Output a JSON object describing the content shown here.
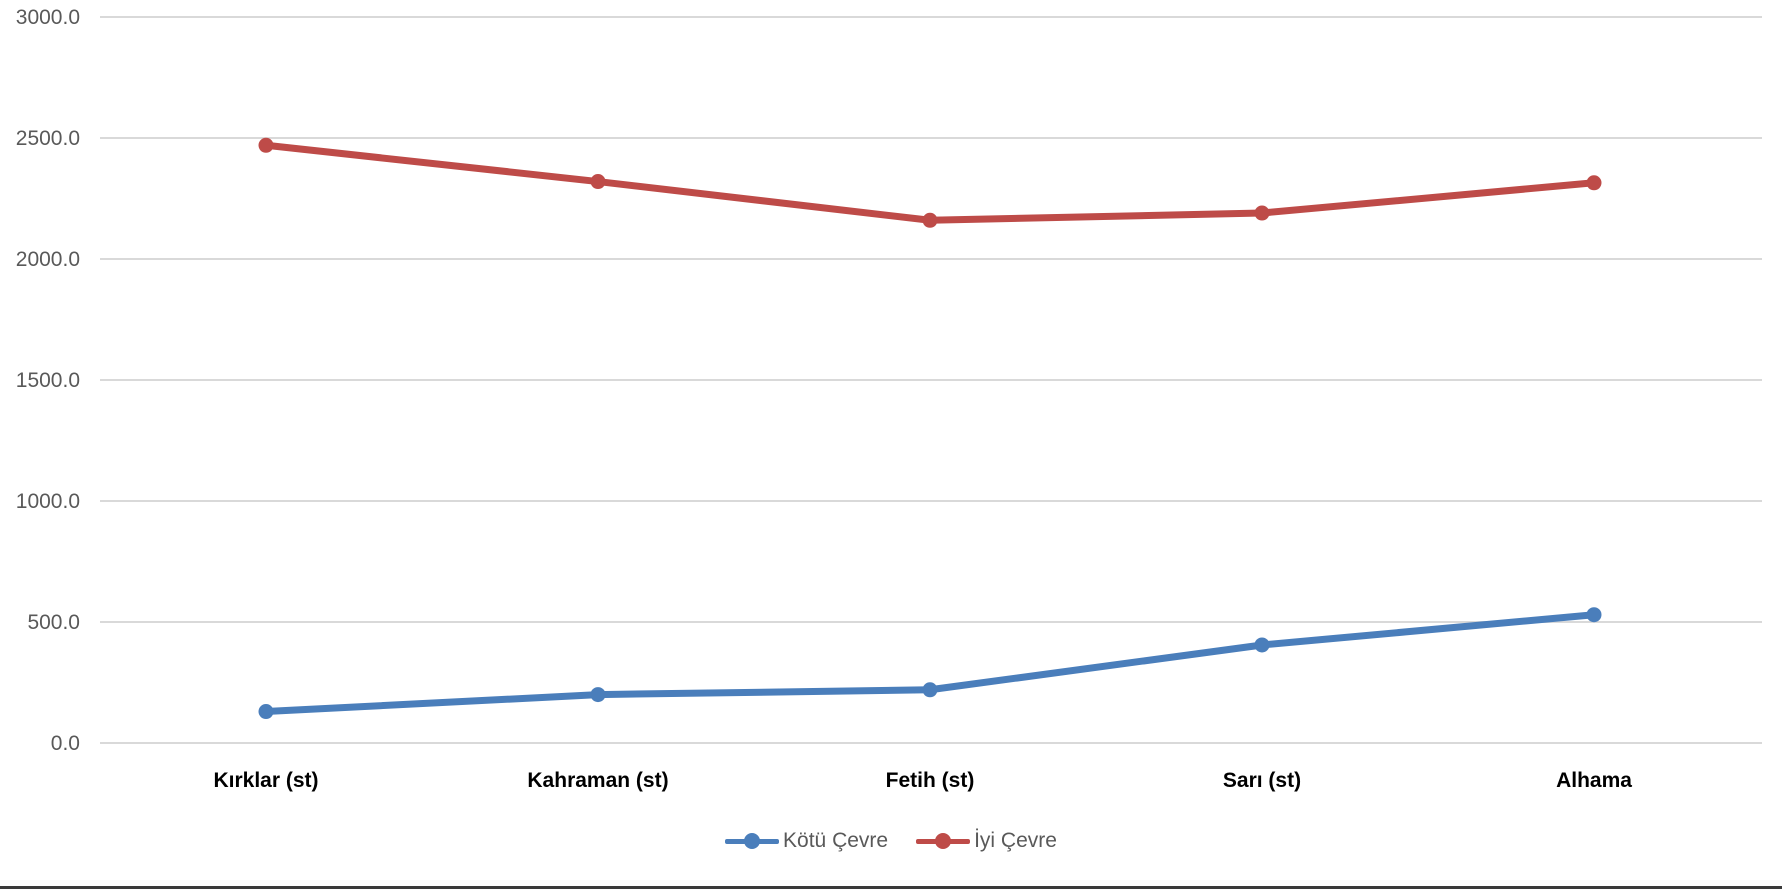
{
  "chart_data": {
    "type": "line",
    "categories": [
      "Kırklar (st)",
      "Kahraman (st)",
      "Fetih (st)",
      "Sarı (st)",
      "Alhama"
    ],
    "series": [
      {
        "name": "Kötü Çevre",
        "values": [
          130,
          200,
          220,
          405,
          530
        ],
        "color": "#4a7ebb"
      },
      {
        "name": "İyi Çevre",
        "values": [
          2470,
          2320,
          2160,
          2190,
          2315
        ],
        "color": "#be4b48"
      }
    ],
    "yticks": [
      "0.0",
      "500.0",
      "1000.0",
      "1500.0",
      "2000.0",
      "2500.0",
      "3000.0"
    ],
    "ylim": [
      0,
      3000
    ],
    "grid": true,
    "legend_position": "bottom"
  },
  "colors": {
    "gridline": "#d9d9d9",
    "tick_text": "#595959",
    "category_text": "#000000"
  }
}
